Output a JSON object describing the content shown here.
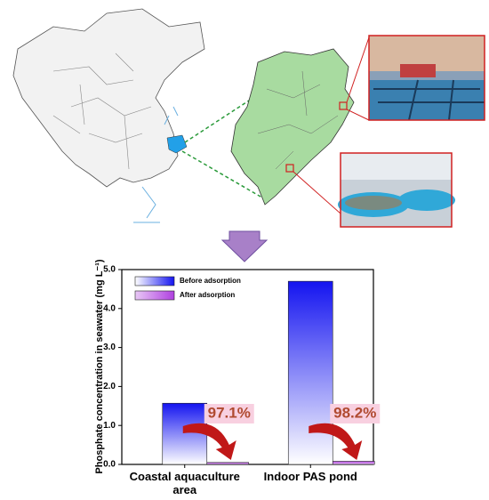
{
  "chart_data": {
    "type": "bar",
    "ylabel": "Phosphate concentration in seawater (mg L⁻¹)",
    "categories": [
      "Coastal aquaculture area",
      "Indoor PAS pond"
    ],
    "series": [
      {
        "name": "Before adsorption",
        "color": "#1414f0",
        "values": [
          1.57,
          4.7
        ]
      },
      {
        "name": "After adsorption",
        "color": "#b040e0",
        "values": [
          0.05,
          0.08
        ]
      }
    ],
    "annotations": [
      "97.1%",
      "98.2%"
    ],
    "ylim": [
      0,
      5
    ],
    "yticks": [
      {
        "value": 0,
        "label": "0.0"
      },
      {
        "value": 1,
        "label": "1.0"
      },
      {
        "value": 2,
        "label": "2.0"
      },
      {
        "value": 3,
        "label": "3.0"
      },
      {
        "value": 4,
        "label": "4.0"
      },
      {
        "value": 5,
        "label": "5.0"
      }
    ],
    "legend": "upper left"
  }
}
